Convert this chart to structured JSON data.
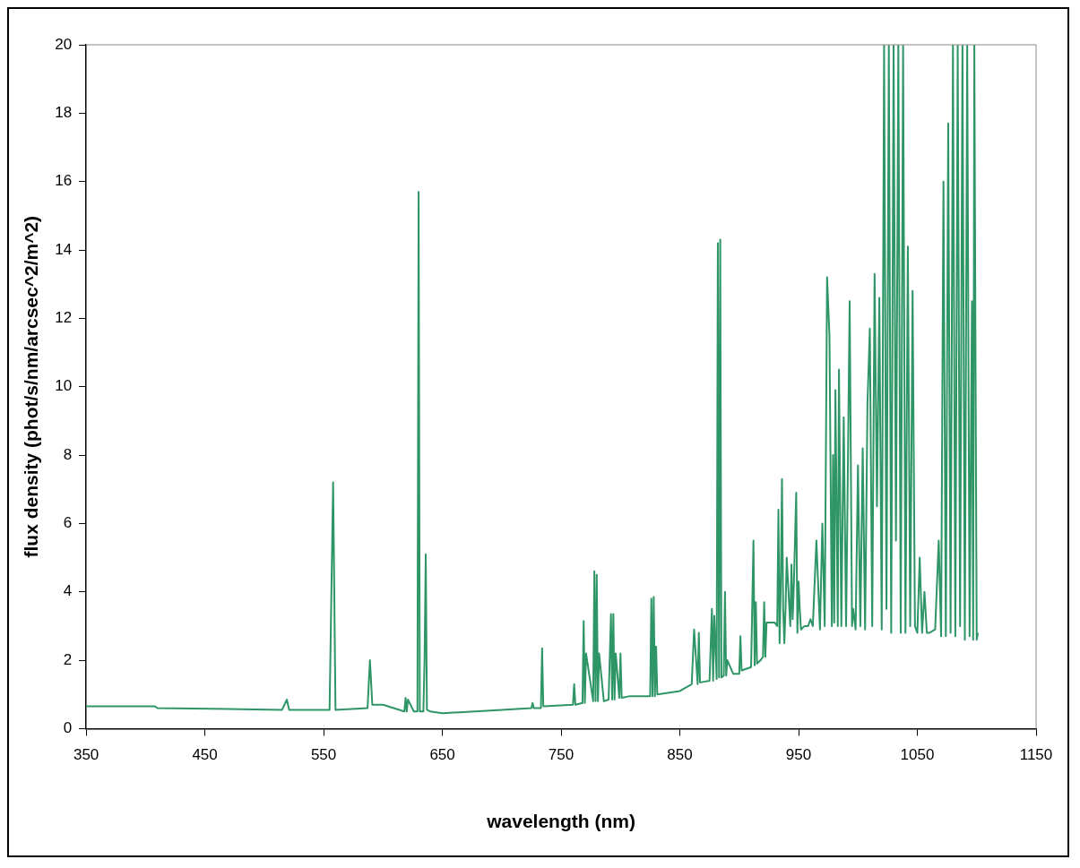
{
  "chart_data": {
    "type": "line",
    "xlabel": "wavelength (nm)",
    "ylabel": "flux density (phot/s/nm/arcsec^2/m^2)",
    "x": [
      350,
      408,
      410,
      515,
      519,
      521,
      555,
      558,
      560,
      587,
      589,
      591,
      600,
      618,
      619,
      620,
      621,
      626,
      629,
      630,
      631,
      634,
      635,
      636,
      637,
      640,
      650,
      700,
      725,
      726,
      727,
      733,
      734,
      735,
      760,
      761,
      762,
      768,
      769,
      770,
      771,
      777,
      778,
      779,
      780,
      781,
      782,
      786,
      790,
      792,
      793,
      794,
      795,
      796,
      799,
      800,
      801,
      808,
      825,
      826,
      827,
      828,
      829,
      830,
      831,
      850,
      860,
      862,
      865,
      866,
      867,
      875,
      877,
      878,
      879,
      881,
      882,
      883,
      884,
      885,
      887,
      888,
      889,
      890,
      895,
      900,
      901,
      902,
      910,
      912,
      913,
      914,
      915,
      918,
      920,
      921,
      922,
      923,
      930,
      932,
      933,
      934,
      935,
      936,
      937,
      938,
      939,
      940,
      943,
      944,
      945,
      946,
      948,
      949,
      950,
      951,
      952,
      955,
      958,
      960,
      962,
      965,
      968,
      970,
      972,
      974,
      976,
      978,
      979,
      980,
      981,
      983,
      984,
      986,
      988,
      990,
      991,
      993,
      995,
      996,
      998,
      1000,
      1002,
      1004,
      1006,
      1008,
      1010,
      1012,
      1014,
      1016,
      1018,
      1020,
      1022,
      1024,
      1026,
      1028,
      1030,
      1032,
      1034,
      1036,
      1038,
      1040,
      1042,
      1044,
      1046,
      1048,
      1050,
      1052,
      1054,
      1056,
      1058,
      1060,
      1065,
      1068,
      1070,
      1072,
      1074,
      1076,
      1078,
      1080,
      1082,
      1084,
      1086,
      1088,
      1090,
      1092,
      1094,
      1096,
      1097,
      1098,
      1099,
      1100,
      1101
    ],
    "series": [
      {
        "color": "#2e9566",
        "values": [
          0.65,
          0.65,
          0.6,
          0.55,
          0.85,
          0.55,
          0.55,
          7.2,
          0.55,
          0.6,
          2.0,
          0.7,
          0.7,
          0.5,
          0.9,
          0.5,
          0.85,
          0.5,
          0.5,
          15.7,
          0.5,
          0.5,
          2.0,
          5.1,
          0.55,
          0.5,
          0.45,
          0.55,
          0.6,
          0.75,
          0.6,
          0.6,
          2.35,
          0.65,
          0.7,
          1.3,
          0.7,
          0.75,
          3.15,
          0.75,
          2.2,
          0.8,
          4.6,
          0.8,
          4.5,
          0.8,
          2.2,
          0.8,
          0.85,
          3.35,
          0.85,
          3.35,
          0.85,
          2.2,
          0.9,
          2.2,
          0.9,
          0.95,
          0.95,
          3.8,
          0.95,
          3.85,
          0.95,
          2.4,
          1.0,
          1.1,
          1.3,
          2.9,
          1.3,
          2.8,
          1.35,
          1.4,
          3.5,
          1.4,
          3.3,
          1.45,
          14.2,
          1.5,
          14.3,
          1.5,
          1.55,
          4.0,
          1.55,
          2.0,
          1.6,
          1.6,
          2.7,
          1.7,
          1.8,
          5.5,
          1.85,
          3.7,
          1.9,
          2.0,
          2.1,
          3.7,
          2.1,
          3.1,
          3.1,
          3.0,
          6.4,
          2.5,
          4.2,
          7.3,
          3.5,
          2.5,
          3.5,
          5.0,
          3.0,
          4.8,
          3.2,
          4.2,
          6.9,
          2.8,
          4.3,
          3.5,
          2.9,
          3.0,
          3.0,
          3.2,
          3.0,
          5.5,
          2.9,
          6.0,
          3.0,
          13.2,
          11.5,
          3.0,
          8.0,
          3.1,
          9.9,
          3.0,
          10.5,
          3.0,
          9.1,
          3.0,
          6.0,
          12.5,
          3.0,
          3.5,
          2.9,
          7.7,
          3.0,
          8.2,
          2.9,
          9.5,
          11.7,
          3.0,
          13.3,
          6.5,
          12.6,
          2.9,
          20,
          3.5,
          20,
          2.8,
          20,
          5.5,
          20,
          2.8,
          20,
          2.8,
          14.1,
          3.0,
          12.8,
          3.0,
          2.8,
          5.0,
          2.8,
          4.0,
          2.8,
          2.8,
          2.9,
          5.5,
          2.7,
          16.0,
          2.7,
          17.7,
          2.8,
          20,
          2.7,
          20,
          3.0,
          20,
          2.6,
          20,
          2.7,
          12.5,
          2.6,
          20,
          10.8,
          2.6,
          2.8
        ]
      }
    ],
    "xlim": [
      350,
      1150
    ],
    "xticks": [
      350,
      450,
      550,
      650,
      750,
      850,
      950,
      1050,
      1150
    ],
    "ylim": [
      0,
      20
    ],
    "yticks": [
      0,
      2,
      4,
      6,
      8,
      10,
      12,
      14,
      16,
      18,
      20
    ],
    "grid": false,
    "legend": false,
    "marker": "none",
    "line_style": "solid"
  }
}
